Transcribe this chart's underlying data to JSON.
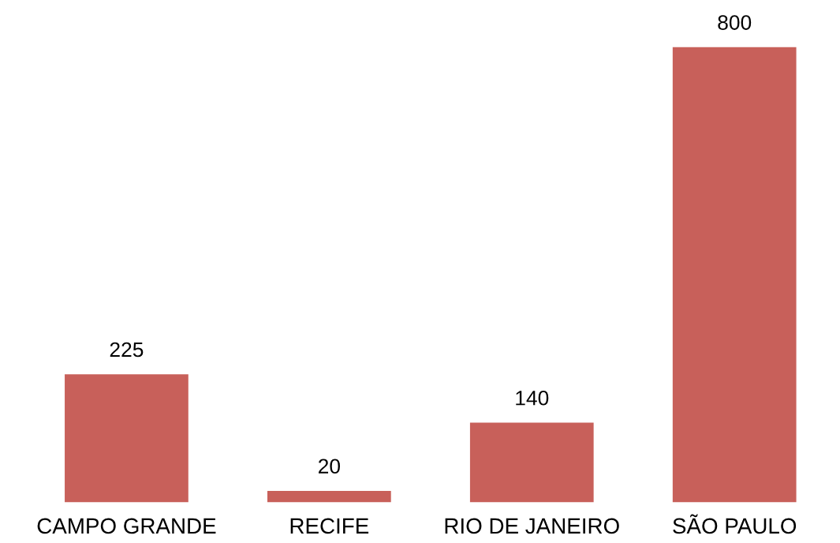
{
  "chart_data": {
    "type": "bar",
    "categories": [
      "CAMPO GRANDE",
      "RECIFE",
      "RIO DE JANEIRO",
      "SÃO PAULO"
    ],
    "values": [
      225,
      20,
      140,
      800
    ],
    "color": "#c8605a",
    "data_labels": true,
    "tick_labels": "x",
    "grid": false
  }
}
